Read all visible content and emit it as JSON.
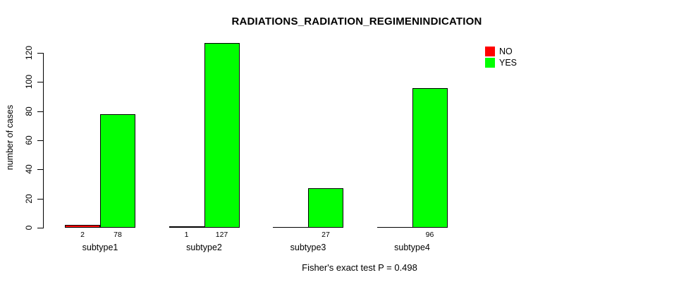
{
  "chart_data": {
    "type": "bar",
    "title": "RADIATIONS_RADIATION_REGIMENINDICATION",
    "ylabel": "number of cases",
    "xlabel": "",
    "categories": [
      "subtype1",
      "subtype2",
      "subtype3",
      "subtype4"
    ],
    "series": [
      {
        "name": "NO",
        "color": "#ff0000",
        "values": [
          2,
          1,
          0,
          0
        ],
        "bar_labels": [
          "2",
          "1",
          "",
          ""
        ]
      },
      {
        "name": "YES",
        "color": "#00ff00",
        "values": [
          78,
          127,
          27,
          96
        ],
        "bar_labels": [
          "78",
          "127",
          "27",
          "96"
        ]
      }
    ],
    "ylim": [
      0,
      120
    ],
    "yticks": [
      0,
      20,
      40,
      60,
      80,
      100,
      120
    ],
    "grid": false,
    "legend_position": "top-right",
    "footnote": "Fisher's exact test P = 0.498"
  }
}
